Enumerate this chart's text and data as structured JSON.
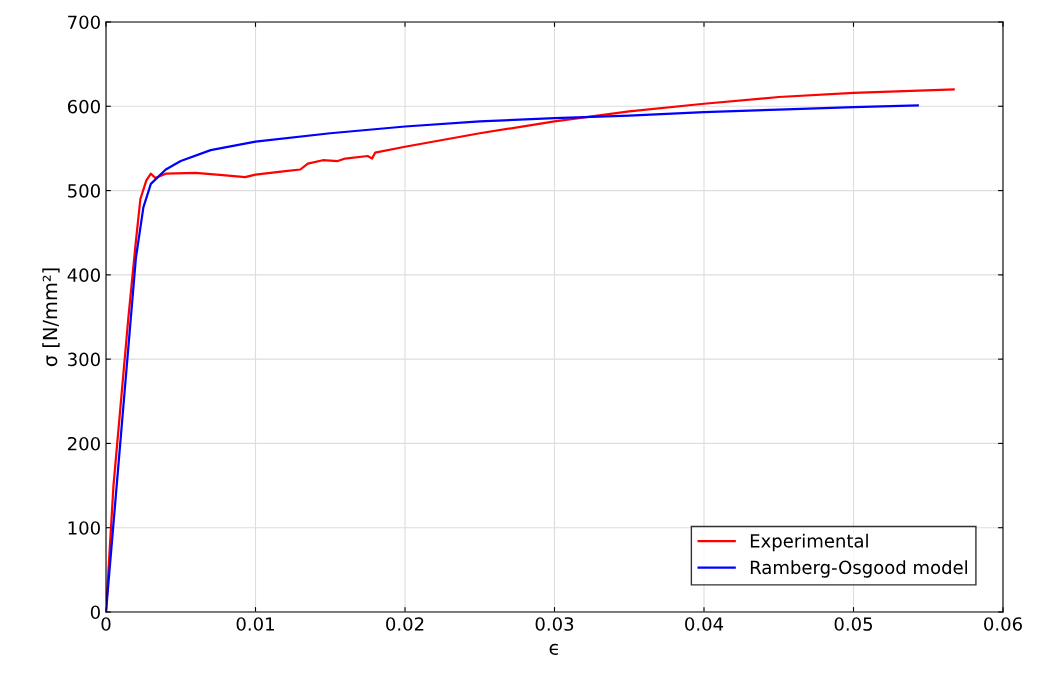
{
  "chart_data": {
    "type": "line",
    "xlabel": "ϵ",
    "ylabel": "σ [N/mm²]",
    "xlim": [
      0,
      0.06
    ],
    "xticks": [
      0,
      0.01,
      0.02,
      0.03,
      0.04,
      0.05,
      0.06
    ],
    "ylim": [
      0,
      700
    ],
    "yticks": [
      0,
      100,
      200,
      300,
      400,
      500,
      600,
      700
    ],
    "grid": true,
    "legend": "bottom right",
    "series": [
      {
        "name": "Experimental",
        "color": "#ff0000",
        "x": [
          0,
          0.0005,
          0.001,
          0.0015,
          0.002,
          0.0023,
          0.0027,
          0.003,
          0.0033,
          0.004,
          0.006,
          0.008,
          0.0093,
          0.01,
          0.012,
          0.013,
          0.0135,
          0.0145,
          0.0155,
          0.016,
          0.0175,
          0.0178,
          0.018,
          0.02,
          0.025,
          0.03,
          0.035,
          0.04,
          0.045,
          0.05,
          0.0567
        ],
        "values": [
          0,
          150,
          250,
          350,
          440,
          490,
          512,
          520,
          515,
          520,
          521,
          518,
          516,
          519,
          523,
          525,
          532,
          536,
          535,
          538,
          541,
          538,
          545,
          552,
          568,
          582,
          594,
          603,
          611,
          616,
          620
        ]
      },
      {
        "name": "Ramberg-Osgood model",
        "color": "#0000ff",
        "x": [
          0,
          0.001,
          0.002,
          0.0025,
          0.003,
          0.004,
          0.005,
          0.007,
          0.01,
          0.015,
          0.02,
          0.025,
          0.03,
          0.035,
          0.04,
          0.045,
          0.05,
          0.0543
        ],
        "values": [
          0,
          210,
          420,
          480,
          508,
          525,
          535,
          548,
          558,
          568,
          576,
          582,
          586,
          589,
          593,
          596,
          599,
          601
        ]
      }
    ]
  }
}
